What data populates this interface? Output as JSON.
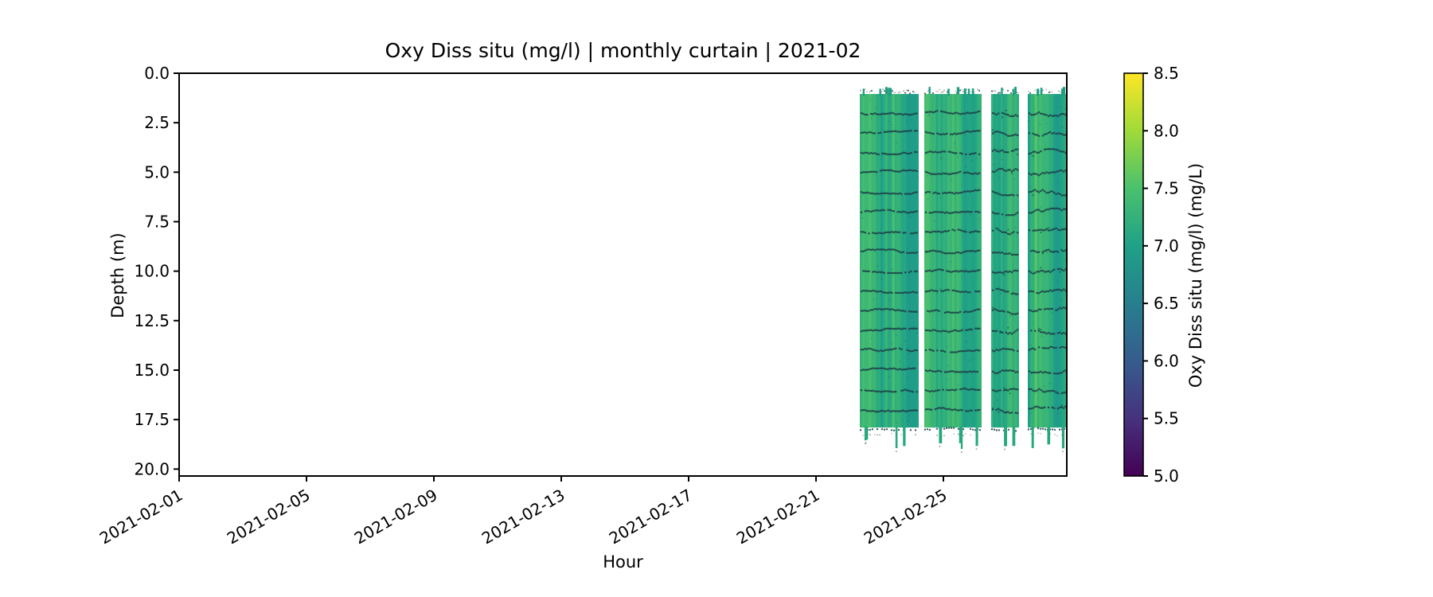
{
  "figure": {
    "background": "#ffffff"
  },
  "chart_data": {
    "type": "heatmap",
    "title": "Oxy Diss situ (mg/l) | monthly curtain | 2021-02",
    "xlabel": "Hour",
    "ylabel": "Depth (m)",
    "x_axis": {
      "tick_labels": [
        "2021-02-01",
        "2021-02-05",
        "2021-02-09",
        "2021-02-13",
        "2021-02-17",
        "2021-02-21",
        "2021-02-25"
      ],
      "tick_days": [
        1,
        5,
        9,
        13,
        17,
        21,
        25
      ],
      "lim_days": [
        1,
        28.875
      ],
      "tick_label_rotation_deg": 30
    },
    "y_axis": {
      "tick_labels": [
        "0.0",
        "2.5",
        "5.0",
        "7.5",
        "10.0",
        "12.5",
        "15.0",
        "17.5",
        "20.0"
      ],
      "tick_values": [
        0.0,
        2.5,
        5.0,
        7.5,
        10.0,
        12.5,
        15.0,
        17.5,
        20.0
      ],
      "lim": [
        0,
        20.35
      ],
      "inverted": true
    },
    "colorbar": {
      "label": "Oxy Diss situ (mg/l) (mg/L)",
      "tick_labels": [
        "5.0",
        "5.5",
        "6.0",
        "6.5",
        "7.0",
        "7.5",
        "8.0",
        "8.5"
      ],
      "tick_values": [
        5.0,
        5.5,
        6.0,
        6.5,
        7.0,
        7.5,
        8.0,
        8.5
      ],
      "vmin": 5.0,
      "vmax": 8.5,
      "colormap": "viridis",
      "stops": [
        [
          5.0,
          "#440154"
        ],
        [
          5.5,
          "#46327e"
        ],
        [
          6.0,
          "#365c8d"
        ],
        [
          6.5,
          "#277f8e"
        ],
        [
          7.0,
          "#1fa187"
        ],
        [
          7.5,
          "#4ac16d"
        ],
        [
          8.0,
          "#a0da39"
        ],
        [
          8.5,
          "#fde725"
        ]
      ]
    },
    "segments": [
      {
        "start_day": 22.375,
        "end_day": 24.225,
        "start": "2021-02-22 09:00",
        "end": "2021-02-24 05:24",
        "top_depth_m": 1.05,
        "bottom_depth_m": 17.9,
        "mean_value_mg_l": 7.2,
        "value_range_mg_l": [
          6.9,
          7.6
        ],
        "scatter": "low",
        "base_value": 7.18
      },
      {
        "start_day": 24.4,
        "end_day": 26.2,
        "start": "2021-02-24 09:36",
        "end": "2021-02-26 04:48",
        "top_depth_m": 1.05,
        "bottom_depth_m": 17.9,
        "mean_value_mg_l": 7.2,
        "value_range_mg_l": [
          6.9,
          7.6
        ],
        "scatter": "low",
        "base_value": 7.22
      },
      {
        "start_day": 26.5,
        "end_day": 27.375,
        "start": "2021-02-26 12:00",
        "end": "2021-02-27 09:00",
        "top_depth_m": 1.05,
        "bottom_depth_m": 17.9,
        "mean_value_mg_l": 7.15,
        "value_range_mg_l": [
          6.9,
          7.6
        ],
        "scatter": "high",
        "base_value": 7.1
      },
      {
        "start_day": 27.65,
        "end_day": 28.875,
        "start": "2021-02-27 15:36",
        "end": "2021-02-28 21:00",
        "top_depth_m": 1.05,
        "bottom_depth_m": 17.9,
        "mean_value_mg_l": 7.2,
        "value_range_mg_l": [
          6.9,
          7.6
        ],
        "scatter": "high",
        "base_value": 7.15
      }
    ],
    "profile_line_depths_m": [
      1,
      2,
      3,
      4,
      5,
      6,
      7,
      8,
      9,
      10,
      11,
      12,
      13,
      14,
      15,
      16,
      17,
      18
    ],
    "max_spike_depth_m": 19.1,
    "colors": {
      "profile_dot": "#1c4048",
      "speck_dark": "#a3a3a3",
      "speck_light": "#c6c6c6",
      "spike": "#26a77f",
      "nub": "#1f9e80",
      "spine": "#000000"
    }
  }
}
